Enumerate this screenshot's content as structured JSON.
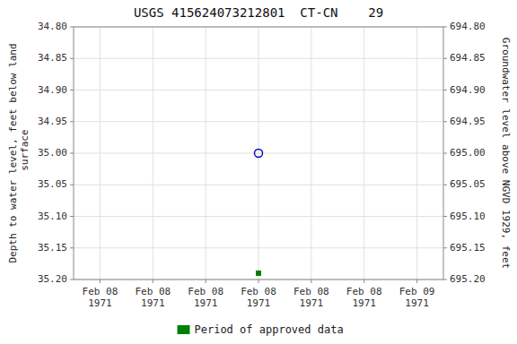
{
  "chart_data": {
    "type": "scatter",
    "title": "USGS 415624073212801  CT-CN    29",
    "ylabel": "Depth to water level, feet below land\n surface",
    "y2label": "Groundwater level above NGVD 1929, feet",
    "categories": [
      "Feb 08\n1971",
      "Feb 08\n1971",
      "Feb 08\n1971",
      "Feb 08\n1971",
      "Feb 08\n1971",
      "Feb 08\n1971",
      "Feb 09\n1971"
    ],
    "series": [
      {
        "color": "#0000bb",
        "marker": "circle-open",
        "values": [
          null,
          null,
          null,
          {
            "value": 35.0,
            "label": "35.00"
          },
          null,
          null,
          null
        ]
      },
      {
        "name": "Period of approved data",
        "color": "#008000",
        "marker": "square",
        "values": [
          null,
          null,
          null,
          35.19,
          null,
          null,
          null
        ]
      }
    ],
    "ylim": [
      35.2,
      34.8
    ],
    "yticks": [
      {
        "value": 34.8,
        "label": "34.80"
      },
      34.85,
      {
        "value": 34.9,
        "label": "34.90"
      },
      34.95,
      {
        "value": 35.0,
        "label": "35.00"
      },
      35.05,
      {
        "value": 35.1,
        "label": "35.10"
      },
      35.15,
      {
        "value": 35.2,
        "label": "35.20"
      }
    ],
    "y2lim": [
      695.2,
      694.8
    ],
    "y2ticks": [
      {
        "value": 695.2,
        "label": "695.20"
      },
      695.15,
      {
        "value": 695.1,
        "label": "695.10"
      },
      695.05,
      {
        "value": 695.0,
        "label": "695.00"
      },
      694.95,
      {
        "value": 694.9,
        "label": "694.90"
      },
      694.85,
      {
        "value": 694.8,
        "label": "694.80"
      }
    ],
    "grid": true,
    "legend": "bottom"
  }
}
